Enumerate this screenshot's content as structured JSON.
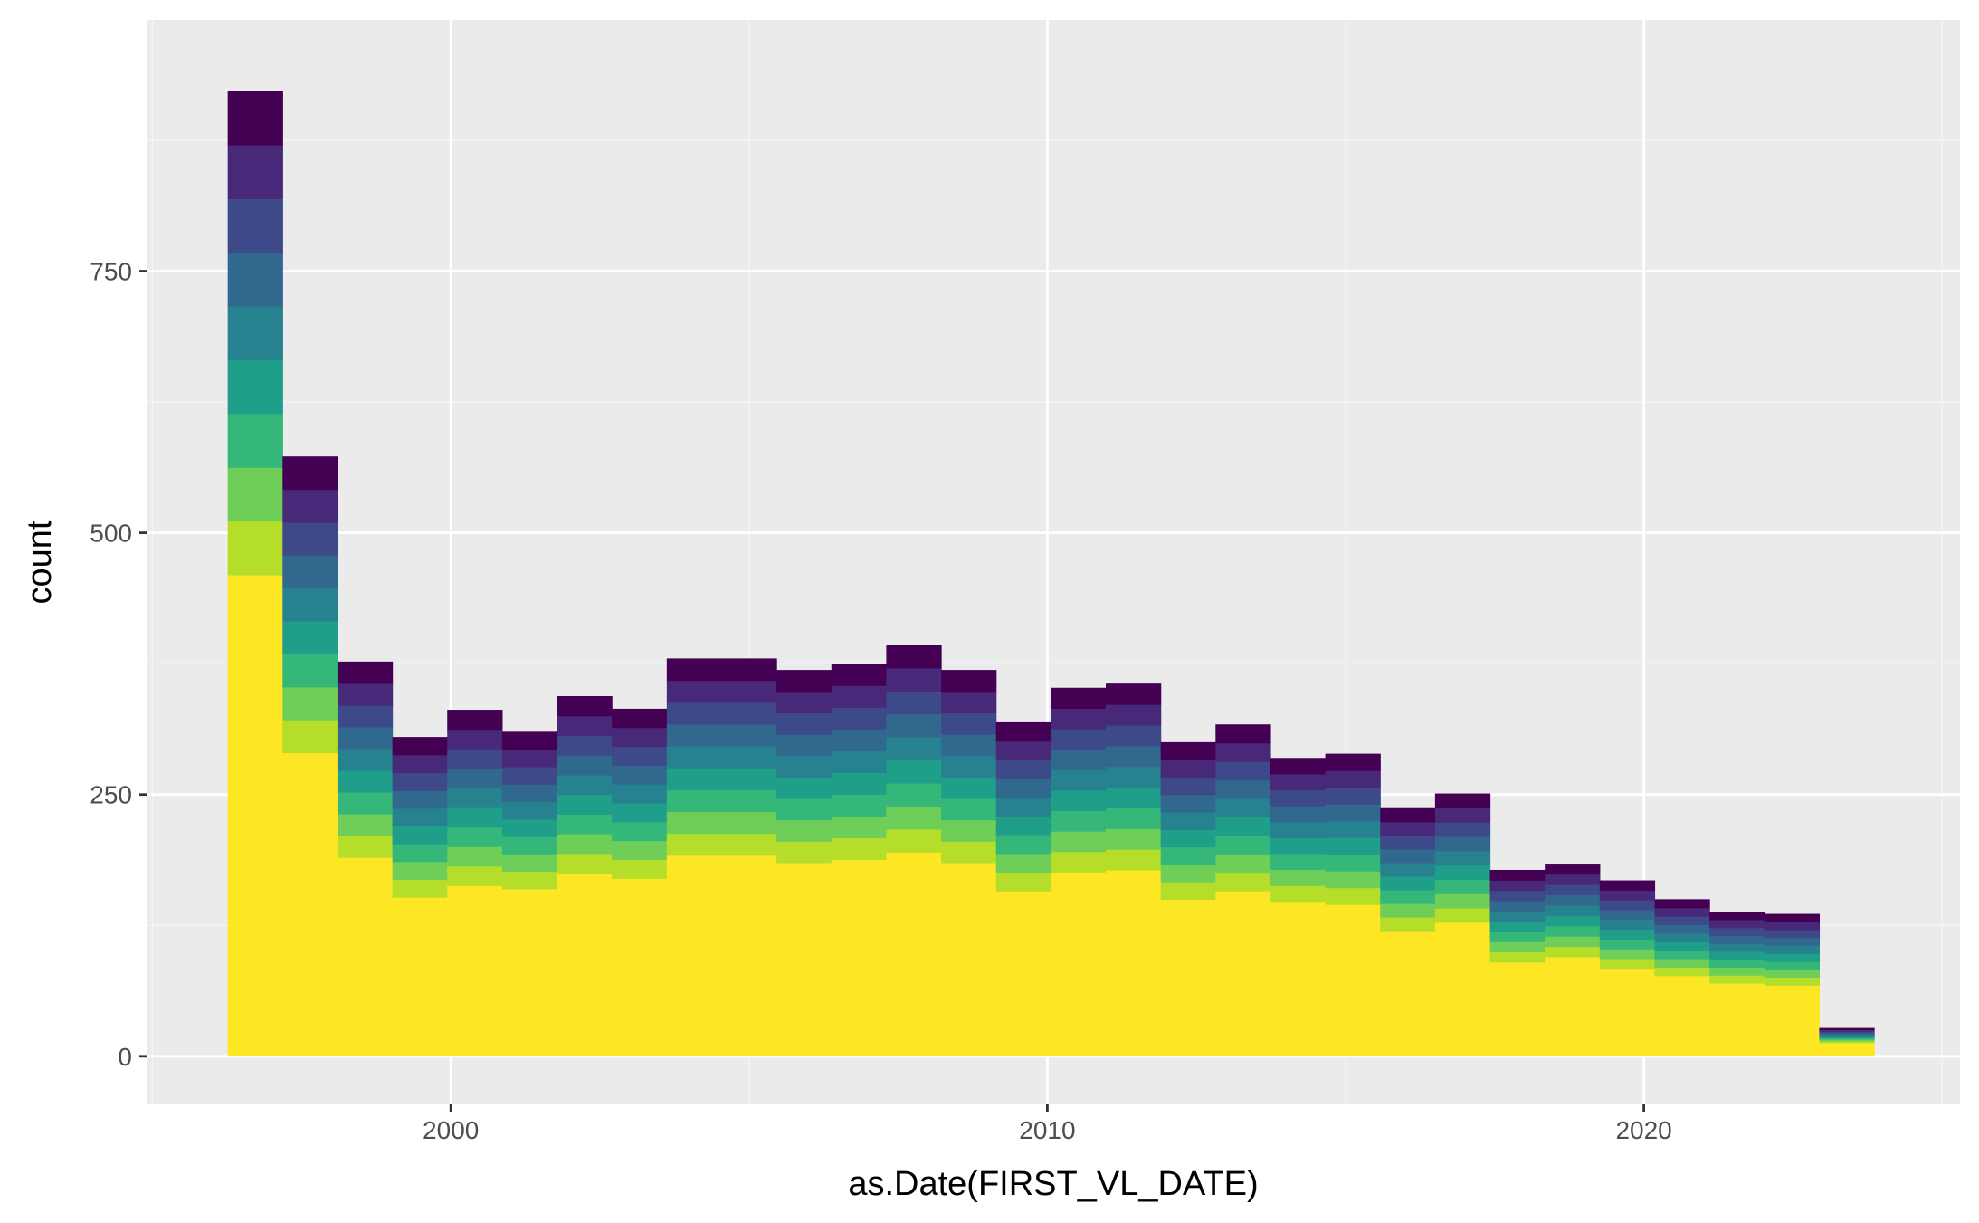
{
  "chart_data": {
    "type": "bar",
    "subtype": "stacked-histogram",
    "title": "",
    "xlabel": "as.Date(FIRST_VL_DATE)",
    "ylabel": "count",
    "xlim": [
      1994.9,
      2025.3
    ],
    "ylim": [
      -46,
      990
    ],
    "x_ticks": [
      2000,
      2010,
      2020
    ],
    "y_ticks": [
      0,
      250,
      500,
      750
    ],
    "grid": true,
    "legend": "none",
    "bin_width_years": 0.92,
    "bins": [
      {
        "x": 1996.72,
        "total": 922,
        "base": 460
      },
      {
        "x": 1997.64,
        "total": 573,
        "base": 290
      },
      {
        "x": 1998.56,
        "total": 377,
        "base": 190
      },
      {
        "x": 1999.48,
        "total": 305,
        "base": 152
      },
      {
        "x": 2000.4,
        "total": 331,
        "base": 163
      },
      {
        "x": 2001.32,
        "total": 310,
        "base": 160
      },
      {
        "x": 2002.24,
        "total": 344,
        "base": 175
      },
      {
        "x": 2003.16,
        "total": 332,
        "base": 170
      },
      {
        "x": 2004.08,
        "total": 380,
        "base": 192
      },
      {
        "x": 2005.0,
        "total": 380,
        "base": 192
      },
      {
        "x": 2005.92,
        "total": 369,
        "base": 185
      },
      {
        "x": 2006.84,
        "total": 375,
        "base": 188
      },
      {
        "x": 2007.76,
        "total": 393,
        "base": 195
      },
      {
        "x": 2008.68,
        "total": 369,
        "base": 185
      },
      {
        "x": 2009.6,
        "total": 319,
        "base": 158
      },
      {
        "x": 2010.52,
        "total": 352,
        "base": 176
      },
      {
        "x": 2011.44,
        "total": 356,
        "base": 178
      },
      {
        "x": 2012.36,
        "total": 300,
        "base": 150
      },
      {
        "x": 2013.28,
        "total": 317,
        "base": 158
      },
      {
        "x": 2014.2,
        "total": 285,
        "base": 148
      },
      {
        "x": 2015.12,
        "total": 289,
        "base": 145
      },
      {
        "x": 2016.04,
        "total": 237,
        "base": 120
      },
      {
        "x": 2016.96,
        "total": 251,
        "base": 128
      },
      {
        "x": 2017.88,
        "total": 178,
        "base": 90
      },
      {
        "x": 2018.8,
        "total": 184,
        "base": 95
      },
      {
        "x": 2019.72,
        "total": 168,
        "base": 84
      },
      {
        "x": 2020.64,
        "total": 150,
        "base": 77
      },
      {
        "x": 2021.56,
        "total": 138,
        "base": 70
      },
      {
        "x": 2022.48,
        "total": 136,
        "base": 68
      },
      {
        "x": 2023.4,
        "total": 27,
        "base": 13
      }
    ],
    "fill_palette": [
      "#fde725",
      "#b5de2b",
      "#6ece58",
      "#35b779",
      "#1f9e89",
      "#26828e",
      "#31688e",
      "#3e4989",
      "#482878",
      "#440154"
    ],
    "colors": {
      "panel_background": "#ebebeb",
      "grid_major": "#ffffff",
      "grid_minor": "#f5f5f5"
    }
  }
}
